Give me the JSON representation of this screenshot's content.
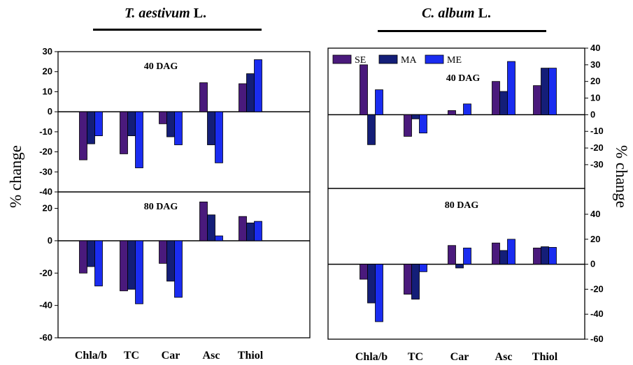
{
  "titles": {
    "left": {
      "species": "T. aestivum",
      "suffix": " L."
    },
    "right": {
      "species": "C. album",
      "suffix": " L."
    }
  },
  "ylabel": "% change",
  "legend": [
    {
      "name": "SE",
      "color": "#4a1a7c"
    },
    {
      "name": "MA",
      "color": "#141e78"
    },
    {
      "name": "ME",
      "color": "#1a2cf0"
    }
  ],
  "chart_data": [
    {
      "type": "bar",
      "species": "T. aestivum L.",
      "panel": "40 DAG",
      "categories": [
        "Chla/b",
        "TC",
        "Car",
        "Asc",
        "Thiol"
      ],
      "ylim": [
        -40,
        30
      ],
      "yticks": [
        -40,
        -30,
        -20,
        -10,
        0,
        10,
        20,
        30
      ],
      "axis_side": "left",
      "show_xlabels": false,
      "series": [
        {
          "name": "SE",
          "values": [
            -24,
            -21,
            -6,
            14.5,
            14
          ]
        },
        {
          "name": "MA",
          "values": [
            -16,
            -12,
            -12.5,
            -16.5,
            19
          ]
        },
        {
          "name": "ME",
          "values": [
            -12,
            -28,
            -16.5,
            -25.5,
            26
          ]
        }
      ]
    },
    {
      "type": "bar",
      "species": "T. aestivum L.",
      "panel": "80 DAG",
      "categories": [
        "Chla/b",
        "TC",
        "Car",
        "Asc",
        "Thiol"
      ],
      "ylim": [
        -60,
        25
      ],
      "yticks": [
        -60,
        -40,
        -20,
        0,
        20
      ],
      "axis_side": "left",
      "show_xlabels": true,
      "series": [
        {
          "name": "SE",
          "values": [
            -20,
            -31,
            -14,
            24,
            15
          ]
        },
        {
          "name": "MA",
          "values": [
            -16,
            -30,
            -25,
            16,
            11
          ]
        },
        {
          "name": "ME",
          "values": [
            -28,
            -39,
            -35,
            3,
            12
          ]
        }
      ]
    },
    {
      "type": "bar",
      "species": "C. album L.",
      "panel": "40 DAG",
      "categories": [
        "Chla/b",
        "TC",
        "Car",
        "Asc",
        "Thiol"
      ],
      "ylim": [
        -25,
        40
      ],
      "yticks": [
        -30,
        -20,
        -10,
        0,
        10,
        20,
        30,
        40
      ],
      "axis_side": "right",
      "show_xlabels": false,
      "series": [
        {
          "name": "SE",
          "values": [
            30,
            -13,
            2.5,
            20,
            17.5
          ]
        },
        {
          "name": "MA",
          "values": [
            -18,
            -2.5,
            0,
            14,
            28
          ]
        },
        {
          "name": "ME",
          "values": [
            15,
            -11,
            6.5,
            32,
            28
          ]
        }
      ]
    },
    {
      "type": "bar",
      "species": "C. album L.",
      "panel": "80 DAG",
      "categories": [
        "Chla/b",
        "TC",
        "Car",
        "Asc",
        "Thiol"
      ],
      "ylim": [
        -60,
        40
      ],
      "yticks": [
        -60,
        -40,
        -20,
        0,
        20,
        40
      ],
      "axis_side": "right",
      "show_xlabels": true,
      "series": [
        {
          "name": "SE",
          "values": [
            -12,
            -24,
            15,
            17,
            13
          ]
        },
        {
          "name": "MA",
          "values": [
            -31,
            -28,
            -3,
            11,
            14
          ]
        },
        {
          "name": "ME",
          "values": [
            -46,
            -6,
            13,
            20,
            13.5
          ]
        }
      ]
    }
  ]
}
